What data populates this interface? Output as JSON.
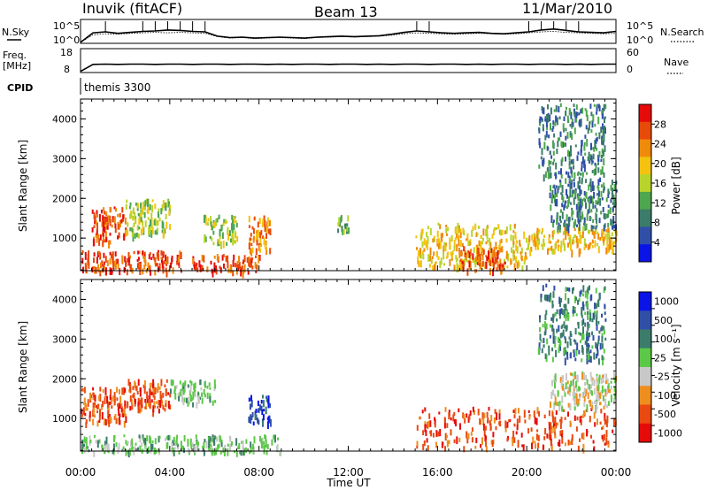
{
  "header": {
    "station": "Inuvik (fitACF)",
    "beam": "Beam 13",
    "date": "11/Mar/2010"
  },
  "nsky_panel": {
    "left_label": "N.Sky",
    "right_label": "N.Search",
    "left_ticks": [
      "10^5",
      "10^0"
    ],
    "right_ticks": [
      "10^5",
      "10^0"
    ]
  },
  "freq_panel": {
    "left_label_top": "Freq.",
    "left_label_bottom": "[MHz]",
    "right_label": "Nave",
    "left_ticks": [
      "18",
      "8"
    ],
    "right_ticks": [
      "60",
      "0"
    ]
  },
  "cpid_panel": {
    "label": "CPID",
    "text": "themis 3300"
  },
  "colors": {
    "power": [
      "#0a14e6",
      "#2f4fa8",
      "#3c7c6a",
      "#4ea64e",
      "#b8d42a",
      "#f4c20f",
      "#f08a0a",
      "#e84a0a",
      "#e60a0a"
    ],
    "velocity": [
      "#e60a0a",
      "#ea4a10",
      "#ee8e1e",
      "#c8c8c8",
      "#5cc848",
      "#3c7c6a",
      "#2f4fa8",
      "#0a14e6"
    ],
    "axis": "#000000"
  },
  "chart_data": [
    {
      "type": "line",
      "title": "",
      "series": [
        {
          "name": "N.Sky",
          "values": [
            0.2,
            2.2,
            2.4,
            2.1,
            2.3,
            2.5,
            2.6,
            2.8,
            2.7,
            2.5,
            2.4,
            1.5,
            1.2,
            1.3,
            1.1,
            1.2,
            1.3,
            1.2,
            1.1,
            1.3,
            1.4,
            1.5,
            1.4,
            1.5,
            1.6,
            1.9,
            2.3,
            2.6,
            2.4,
            2.2,
            2.1,
            2.2,
            2.3,
            2.1,
            2.0,
            2.2,
            2.4,
            2.8,
            3.0,
            2.7,
            2.4,
            2.3,
            2.2,
            2.5
          ]
        },
        {
          "name": "N.Search",
          "values": [
            0.2,
            1.8,
            2.0,
            1.9,
            2.1,
            2.2,
            2.3,
            2.2,
            2.3,
            2.2,
            2.1,
            1.4,
            1.1,
            1.2,
            1.0,
            1.1,
            1.2,
            1.1,
            1.0,
            1.2,
            1.3,
            1.4,
            1.3,
            1.4,
            1.5,
            1.7,
            2.0,
            2.2,
            2.1,
            2.0,
            1.9,
            2.0,
            2.1,
            2.0,
            1.9,
            2.0,
            2.2,
            2.4,
            2.5,
            2.3,
            2.2,
            2.1,
            2.0,
            2.1
          ]
        }
      ],
      "ylim": [
        0,
        5
      ]
    },
    {
      "type": "line",
      "title": "",
      "series": [
        {
          "name": "Freq.",
          "values": [
            8.5,
            11.4,
            11.5,
            11.4,
            11.5,
            11.5,
            11.4,
            11.5,
            11.5,
            11.4,
            11.5,
            11.5,
            11.4,
            11.5,
            11.5,
            11.4,
            11.5,
            11.4,
            11.5,
            11.5,
            11.4,
            11.5,
            11.5,
            11.4,
            11.5,
            11.4,
            11.5,
            11.5,
            11.4,
            11.5,
            11.5,
            11.4,
            11.5,
            11.4,
            11.5,
            11.5,
            11.4,
            11.5,
            11.5,
            11.4,
            11.5,
            11.4,
            11.5,
            11.5
          ]
        }
      ],
      "ylim": [
        8,
        18
      ]
    },
    {
      "type": "heatmap",
      "title": "",
      "xlabel": "",
      "ylabel": "Slant Range [km]",
      "xlim": [
        0,
        24
      ],
      "ylim": [
        180,
        4500
      ],
      "yticks": [
        "1000",
        "2000",
        "3000",
        "4000"
      ],
      "colorbar_label": "Power [dB]",
      "colorbar_ticks": [
        "4",
        "8",
        "12",
        "16",
        "20",
        "24",
        "28"
      ],
      "values": [
        {
          "x": [
            0.0,
            4.5
          ],
          "y": [
            180,
            700
          ],
          "value": 26
        },
        {
          "x": [
            0.5,
            2.0
          ],
          "y": [
            900,
            1800
          ],
          "value": 24
        },
        {
          "x": [
            2.0,
            4.0
          ],
          "y": [
            1100,
            2000
          ],
          "value": 14
        },
        {
          "x": [
            5.0,
            8.0
          ],
          "y": [
            180,
            600
          ],
          "value": 26
        },
        {
          "x": [
            5.5,
            7.0
          ],
          "y": [
            900,
            1600
          ],
          "value": 14
        },
        {
          "x": [
            7.5,
            8.5
          ],
          "y": [
            700,
            1600
          ],
          "value": 22
        },
        {
          "x": [
            11.5,
            12.0
          ],
          "y": [
            1200,
            1600
          ],
          "value": 12
        },
        {
          "x": [
            15.0,
            20.0
          ],
          "y": [
            300,
            1400
          ],
          "value": 18
        },
        {
          "x": [
            17.0,
            19.0
          ],
          "y": [
            200,
            800
          ],
          "value": 26
        },
        {
          "x": [
            20.0,
            24.0
          ],
          "y": [
            700,
            1300
          ],
          "value": 20
        },
        {
          "x": [
            21.0,
            24.0
          ],
          "y": [
            1300,
            2500
          ],
          "value": 8
        },
        {
          "x": [
            20.5,
            23.5
          ],
          "y": [
            2500,
            4400
          ],
          "value": 8
        }
      ]
    },
    {
      "type": "heatmap",
      "title": "",
      "xlabel": "Time UT",
      "ylabel": "Slant Range [km]",
      "xlim": [
        0,
        24
      ],
      "ylim": [
        180,
        4500
      ],
      "xticks": [
        "00:00",
        "04:00",
        "08:00",
        "12:00",
        "16:00",
        "20:00",
        "00:00"
      ],
      "yticks": [
        "1000",
        "2000",
        "3000",
        "4000"
      ],
      "colorbar_label": "Velocity [m s⁻¹]",
      "colorbar_ticks": [
        "1000",
        "500",
        "100",
        "25",
        "-25",
        "-100",
        "-500",
        "-1000"
      ],
      "values": [
        {
          "x": [
            0.0,
            2.0
          ],
          "y": [
            900,
            1800
          ],
          "value": -120
        },
        {
          "x": [
            2.0,
            4.0
          ],
          "y": [
            1200,
            2000
          ],
          "value": -110
        },
        {
          "x": [
            4.0,
            6.0
          ],
          "y": [
            1400,
            2000
          ],
          "value": 80
        },
        {
          "x": [
            7.5,
            8.5
          ],
          "y": [
            900,
            1600
          ],
          "value": 600
        },
        {
          "x": [
            0.0,
            9.0
          ],
          "y": [
            180,
            600
          ],
          "value": 30
        },
        {
          "x": [
            15.0,
            24.0
          ],
          "y": [
            300,
            1300
          ],
          "value": -150
        },
        {
          "x": [
            21.0,
            24.0
          ],
          "y": [
            1300,
            2200
          ],
          "value": 10
        },
        {
          "x": [
            20.5,
            23.5
          ],
          "y": [
            2500,
            4400
          ],
          "value": 200
        }
      ]
    }
  ],
  "axes": {
    "xlabel": "Time UT",
    "xticks": [
      "00:00",
      "04:00",
      "08:00",
      "12:00",
      "16:00",
      "20:00",
      "00:00"
    ]
  }
}
